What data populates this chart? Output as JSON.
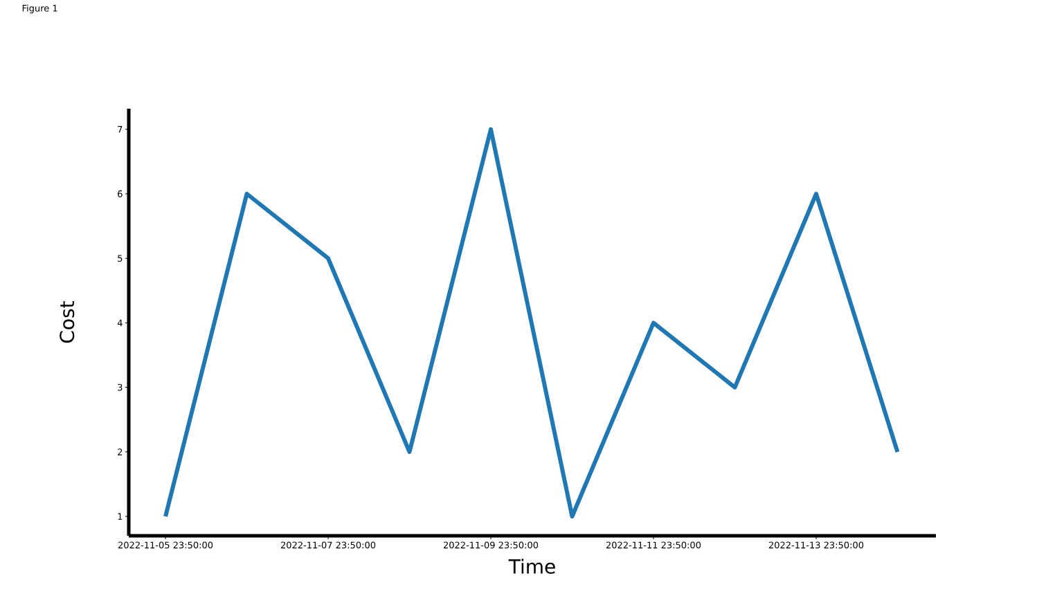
{
  "chart_data": {
    "type": "line",
    "xlabel": "Time",
    "ylabel": "Cost",
    "annotations": [
      "Figure 1"
    ],
    "x": [
      "2022-11-05T23:50",
      "2022-11-06T23:50",
      "2022-11-07T23:50",
      "2022-11-08T23:50",
      "2022-11-09T23:50",
      "2022-11-10T23:50",
      "2022-11-11T23:50",
      "2022-11-12T23:50",
      "2022-11-13T23:50",
      "2022-11-14T23:50"
    ],
    "series": [
      {
        "color": "#1f77b4",
        "values": [
          1,
          6,
          5,
          2,
          7,
          1,
          4,
          3,
          6,
          2
        ]
      }
    ],
    "xlim": [
      "2022-11-05T13:00",
      "2022-11-15T11:10"
    ],
    "xticks": [
      {
        "value": "2022-11-05T23:50",
        "label": "2022-11-05 23:50:00"
      },
      {
        "value": "2022-11-07T23:50",
        "label": "2022-11-07 23:50:00"
      },
      {
        "value": "2022-11-09T23:50",
        "label": "2022-11-09 23:50:00"
      },
      {
        "value": "2022-11-11T23:50",
        "label": "2022-11-11 23:50:00"
      },
      {
        "value": "2022-11-13T23:50",
        "label": "2022-11-13 23:50:00"
      }
    ],
    "ylim": [
      0.7,
      7.32
    ],
    "yticks": [
      1,
      2,
      3,
      4,
      5,
      6,
      7
    ],
    "marker": "none",
    "line_style": "solid"
  }
}
